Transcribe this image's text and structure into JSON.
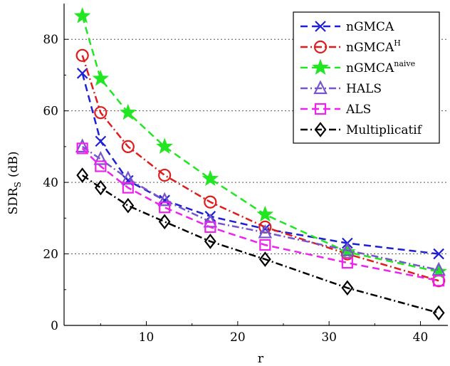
{
  "chart_data": {
    "type": "line",
    "title": "",
    "xlabel": "r",
    "ylabel_main": "SDR",
    "ylabel_sub": "S",
    "ylabel_unit": "(dB)",
    "xlim": [
      1,
      43
    ],
    "ylim": [
      0,
      90
    ],
    "xticks": [
      10,
      20,
      30,
      40
    ],
    "yticks": [
      0,
      20,
      40,
      60,
      80
    ],
    "grid": "horizontal dotted",
    "legend_position": "top-right",
    "x": [
      3,
      5,
      8,
      12,
      17,
      23,
      32,
      42
    ],
    "series": [
      {
        "name": "nGMCA",
        "name_sup": "",
        "values": [
          70.5,
          51.5,
          40.5,
          35,
          30.5,
          27,
          23,
          20
        ],
        "color": "#1f1fd6",
        "dash": "10,6",
        "marker": "x"
      },
      {
        "name": "nGMCA",
        "name_sup": "H",
        "values": [
          75.5,
          59.5,
          50,
          42,
          34.5,
          27.5,
          20,
          12.5
        ],
        "color": "#e01c1c",
        "dash": "10,4,2,4",
        "marker": "circle"
      },
      {
        "name": "nGMCA",
        "name_sup": "naive",
        "values": [
          86.5,
          69,
          59.5,
          50,
          41,
          31,
          20.5,
          15
        ],
        "color": "#22e622",
        "dash": "10,6",
        "marker": "star"
      },
      {
        "name": "HALS",
        "name_sup": "",
        "values": [
          50,
          46.5,
          41,
          35,
          29,
          26,
          21,
          15.5
        ],
        "color": "#7755cc",
        "dash": "10,4,2,4",
        "marker": "triangle"
      },
      {
        "name": "ALS",
        "name_sup": "",
        "values": [
          49.5,
          44.5,
          38.5,
          33,
          27.5,
          22.5,
          17.5,
          12.5
        ],
        "color": "#ee22ee",
        "dash": "10,6",
        "marker": "square"
      },
      {
        "name": "Multiplicatif",
        "name_sup": "",
        "values": [
          42,
          38.5,
          33.5,
          29,
          23.5,
          18.5,
          10.5,
          3.5
        ],
        "color": "#000000",
        "dash": "10,4,2,4",
        "marker": "diamond"
      }
    ]
  }
}
